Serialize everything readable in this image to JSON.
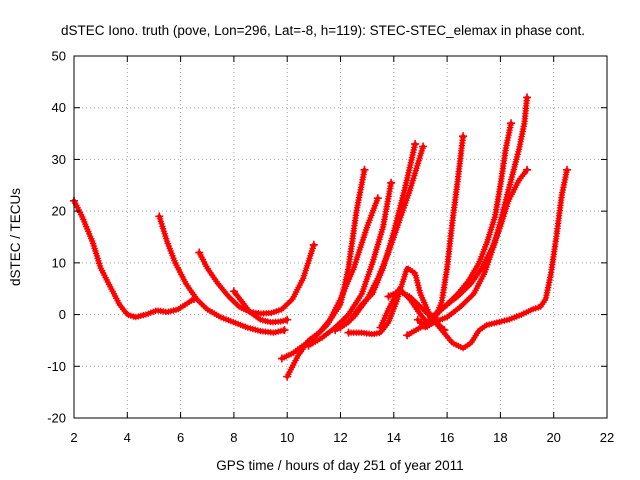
{
  "chart_data": {
    "type": "scatter",
    "title": "dSTEC Iono. truth (pove, Lon=296, Lat=-8, h=119): STEC-STEC_elemax in phase cont.",
    "xlabel": "GPS time / hours of day 251 of year 2011",
    "ylabel": "dSTEC  / TECUs",
    "xlim": [
      2,
      22
    ],
    "ylim": [
      -20,
      50
    ],
    "xticks": [
      2,
      4,
      6,
      8,
      10,
      12,
      14,
      16,
      18,
      20,
      22
    ],
    "yticks": [
      -20,
      -10,
      0,
      10,
      20,
      30,
      40,
      50
    ],
    "xtick_labels": [
      "2",
      "4",
      "6",
      "8",
      "10",
      "12",
      "14",
      "16",
      "18",
      "20",
      "22"
    ],
    "ytick_labels": [
      "-20",
      "-10",
      "0",
      "10",
      "20",
      "30",
      "40",
      "50"
    ],
    "grid": true,
    "marker": "+",
    "color": "#ff0000",
    "series": [
      {
        "name": "arc-1",
        "points": [
          [
            2.0,
            22
          ],
          [
            2.3,
            19
          ],
          [
            2.7,
            14
          ],
          [
            3.0,
            9
          ],
          [
            3.4,
            5
          ],
          [
            3.7,
            2
          ],
          [
            4.0,
            0
          ],
          [
            4.3,
            -0.5
          ],
          [
            4.7,
            0
          ],
          [
            5.1,
            0.8
          ],
          [
            5.5,
            0.5
          ],
          [
            5.9,
            1
          ],
          [
            6.2,
            2
          ],
          [
            6.5,
            3
          ]
        ]
      },
      {
        "name": "arc-2",
        "points": [
          [
            5.2,
            19
          ],
          [
            5.5,
            14
          ],
          [
            5.8,
            10
          ],
          [
            6.2,
            6
          ],
          [
            6.6,
            3
          ],
          [
            7.0,
            1
          ],
          [
            7.5,
            -0.5
          ],
          [
            8.0,
            -1.5
          ],
          [
            8.5,
            -2.5
          ],
          [
            9.0,
            -3.2
          ],
          [
            9.5,
            -3.5
          ],
          [
            9.9,
            -3
          ]
        ]
      },
      {
        "name": "arc-3",
        "points": [
          [
            6.7,
            12
          ],
          [
            7.0,
            9
          ],
          [
            7.4,
            6
          ],
          [
            7.8,
            3.5
          ],
          [
            8.2,
            1.5
          ],
          [
            8.6,
            0.5
          ],
          [
            9.0,
            0.2
          ],
          [
            9.4,
            0.3
          ],
          [
            9.8,
            1
          ],
          [
            10.2,
            3
          ],
          [
            10.6,
            7
          ],
          [
            11.0,
            13.5
          ]
        ]
      },
      {
        "name": "arc-4",
        "points": [
          [
            8.0,
            4.5
          ],
          [
            8.3,
            2.5
          ],
          [
            8.6,
            0.5
          ],
          [
            9.0,
            -1
          ],
          [
            9.4,
            -1.5
          ],
          [
            9.8,
            -1.3
          ],
          [
            10.0,
            -1
          ]
        ]
      },
      {
        "name": "arc-5",
        "points": [
          [
            9.8,
            -8.5
          ],
          [
            10.2,
            -7.5
          ],
          [
            10.6,
            -6
          ],
          [
            11.0,
            -4.5
          ],
          [
            11.5,
            -2
          ],
          [
            12.0,
            2
          ],
          [
            12.3,
            9
          ],
          [
            12.6,
            20
          ],
          [
            12.9,
            28
          ]
        ]
      },
      {
        "name": "arc-6",
        "points": [
          [
            10.0,
            -12
          ],
          [
            10.4,
            -8
          ],
          [
            10.8,
            -5
          ],
          [
            11.2,
            -3.5
          ],
          [
            11.6,
            -1
          ],
          [
            12.0,
            3
          ],
          [
            12.5,
            9
          ],
          [
            13.0,
            17
          ],
          [
            13.4,
            22.5
          ]
        ]
      },
      {
        "name": "arc-7",
        "points": [
          [
            10.8,
            -6
          ],
          [
            11.3,
            -4.5
          ],
          [
            11.8,
            -2.5
          ],
          [
            12.3,
            0
          ],
          [
            12.8,
            4
          ],
          [
            13.2,
            10
          ],
          [
            13.6,
            17
          ],
          [
            13.9,
            25.5
          ]
        ]
      },
      {
        "name": "arc-8",
        "points": [
          [
            11.8,
            -3
          ],
          [
            12.3,
            -1.5
          ],
          [
            12.8,
            2
          ],
          [
            13.2,
            4
          ],
          [
            13.6,
            9
          ],
          [
            14.0,
            16
          ],
          [
            14.4,
            24
          ],
          [
            14.8,
            33
          ]
        ]
      },
      {
        "name": "arc-9",
        "points": [
          [
            12.0,
            -2.5
          ],
          [
            12.5,
            -0.5
          ],
          [
            13.0,
            3
          ],
          [
            13.4,
            7
          ],
          [
            13.8,
            12
          ],
          [
            14.2,
            18
          ],
          [
            14.6,
            24
          ],
          [
            15.1,
            32.5
          ]
        ]
      },
      {
        "name": "arc-10",
        "points": [
          [
            12.3,
            -3.5
          ],
          [
            12.8,
            -3.5
          ],
          [
            13.2,
            -3.8
          ],
          [
            13.5,
            -3.5
          ],
          [
            13.8,
            -1.5
          ],
          [
            14.1,
            2.5
          ],
          [
            14.5,
            9
          ],
          [
            14.8,
            8
          ],
          [
            15.0,
            4
          ],
          [
            15.3,
            0.5
          ],
          [
            15.6,
            -1.5
          ],
          [
            15.9,
            -3
          ]
        ]
      },
      {
        "name": "arc-11",
        "points": [
          [
            13.5,
            -2.5
          ],
          [
            13.8,
            1
          ],
          [
            14.2,
            5
          ],
          [
            14.6,
            3
          ],
          [
            15.0,
            0
          ],
          [
            15.3,
            -1.8
          ]
        ]
      },
      {
        "name": "arc-12",
        "points": [
          [
            13.8,
            3.5
          ],
          [
            14.2,
            4.5
          ],
          [
            14.6,
            3.5
          ],
          [
            15.0,
            1.5
          ],
          [
            15.4,
            -0.5
          ],
          [
            15.8,
            -3
          ],
          [
            16.2,
            -5.5
          ],
          [
            16.6,
            -6.5
          ],
          [
            16.9,
            -5.5
          ],
          [
            17.2,
            -3
          ],
          [
            17.5,
            -2
          ],
          [
            17.9,
            -1.5
          ],
          [
            18.3,
            -1
          ],
          [
            18.8,
            0
          ],
          [
            19.2,
            1
          ],
          [
            19.5,
            1.5
          ],
          [
            19.7,
            3
          ],
          [
            19.9,
            8
          ],
          [
            20.1,
            15
          ],
          [
            20.3,
            23
          ],
          [
            20.5,
            28
          ]
        ]
      },
      {
        "name": "arc-13",
        "points": [
          [
            14.9,
            -1
          ],
          [
            15.2,
            -2.5
          ],
          [
            15.5,
            -1.5
          ],
          [
            15.8,
            2.5
          ],
          [
            16.0,
            9
          ],
          [
            16.2,
            18
          ],
          [
            16.4,
            26
          ],
          [
            16.6,
            34.5
          ]
        ]
      },
      {
        "name": "arc-14",
        "points": [
          [
            14.5,
            -4
          ],
          [
            15.0,
            -2.5
          ],
          [
            15.5,
            -1.5
          ],
          [
            16.0,
            -0.5
          ],
          [
            16.5,
            1.5
          ],
          [
            17.0,
            4
          ],
          [
            17.4,
            8
          ],
          [
            17.8,
            14
          ],
          [
            18.1,
            20
          ],
          [
            18.4,
            26
          ],
          [
            18.7,
            32
          ],
          [
            18.9,
            37
          ],
          [
            19.0,
            42
          ]
        ]
      },
      {
        "name": "arc-15",
        "points": [
          [
            15.1,
            -2
          ],
          [
            15.6,
            0
          ],
          [
            16.0,
            2
          ],
          [
            16.4,
            4
          ],
          [
            16.8,
            6.5
          ],
          [
            17.2,
            10
          ],
          [
            17.5,
            14
          ],
          [
            17.8,
            19
          ],
          [
            18.0,
            25
          ],
          [
            18.2,
            32
          ],
          [
            18.4,
            37
          ]
        ]
      },
      {
        "name": "arc-16",
        "points": [
          [
            15.4,
            -0.5
          ],
          [
            15.9,
            1.5
          ],
          [
            16.4,
            3.5
          ],
          [
            16.9,
            6
          ],
          [
            17.3,
            9
          ],
          [
            17.7,
            13
          ],
          [
            18.0,
            17
          ],
          [
            18.3,
            22
          ],
          [
            18.7,
            26
          ],
          [
            19.0,
            28
          ]
        ]
      }
    ]
  }
}
